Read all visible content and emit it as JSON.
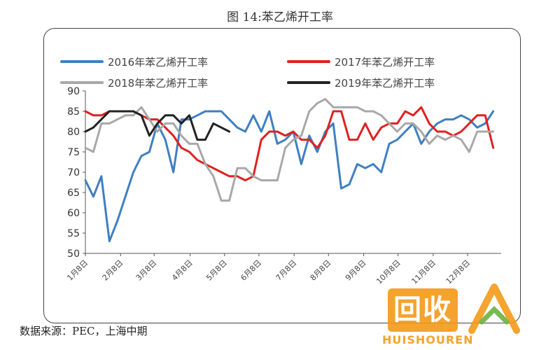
{
  "title": "图 14:苯乙烯开工率",
  "source": "数据来源：PEC，上海中期",
  "watermark": {
    "brand": "回收",
    "sub": "HUISHOUREN",
    "colors": {
      "orange": "#f39a18"
    }
  },
  "chart_data": {
    "type": "line",
    "title": "图 14:苯乙烯开工率",
    "xlabel": "",
    "ylabel": "",
    "ylim": [
      50,
      90
    ],
    "yticks": [
      50,
      55,
      60,
      65,
      70,
      75,
      80,
      85,
      90
    ],
    "grid": false,
    "legend_position": "top",
    "x_range": [
      0,
      52
    ],
    "xticks": [
      {
        "label": "1月8日",
        "x": 0
      },
      {
        "label": "2月8日",
        "x": 4.4
      },
      {
        "label": "3月8日",
        "x": 8.6
      },
      {
        "label": "4月8日",
        "x": 13.1
      },
      {
        "label": "5月8日",
        "x": 17.4
      },
      {
        "label": "6月8日",
        "x": 21.7
      },
      {
        "label": "7月8日",
        "x": 26.1
      },
      {
        "label": "8月8日",
        "x": 30.4
      },
      {
        "label": "9月8日",
        "x": 34.8
      },
      {
        "label": "10月8日",
        "x": 39.1
      },
      {
        "label": "11月8日",
        "x": 43.5
      },
      {
        "label": "12月8日",
        "x": 47.8
      }
    ],
    "series": [
      {
        "name": "2016年苯乙烯开工率",
        "color": "#3f7fc1",
        "values": [
          68,
          64,
          69,
          53,
          58,
          64,
          70,
          74,
          75,
          82,
          78,
          70,
          83,
          83,
          84,
          85,
          85,
          85,
          83,
          81,
          80,
          84,
          80,
          85,
          77,
          78,
          80,
          72,
          79,
          75,
          80,
          82,
          66,
          67,
          72,
          71,
          72,
          70,
          77,
          78,
          80,
          82,
          77,
          80,
          82,
          83,
          83,
          84,
          83,
          81,
          82,
          85
        ]
      },
      {
        "name": "2017年苯乙烯开工率",
        "color": "#e02020",
        "values": [
          85,
          84,
          84,
          85,
          85,
          85,
          85,
          84,
          83,
          83,
          81,
          79,
          76,
          75,
          73,
          72,
          71,
          70,
          69,
          69,
          68,
          69,
          78,
          80,
          80,
          79,
          80,
          78,
          78,
          76,
          79,
          85,
          85,
          78,
          78,
          82,
          78,
          81,
          82,
          82,
          85,
          84,
          86,
          82,
          80,
          80,
          79,
          80,
          82,
          84,
          84,
          76
        ]
      },
      {
        "name": "2018年苯乙烯开工率",
        "color": "#a8a8a8",
        "values": [
          76,
          75,
          82,
          82,
          83,
          84,
          84,
          86,
          83,
          80,
          82,
          82,
          79,
          77,
          77,
          72,
          69,
          63,
          63,
          71,
          71,
          69,
          68,
          68,
          68,
          76,
          78,
          79,
          85,
          87,
          88,
          86,
          86,
          86,
          86,
          85,
          85,
          84,
          82,
          80,
          82,
          82,
          80,
          77,
          79,
          78,
          79,
          78,
          75,
          80,
          80,
          80
        ]
      },
      {
        "name": "2019年苯乙烯开工率",
        "color": "#222222",
        "values": [
          80,
          81,
          83,
          85,
          85,
          85,
          85,
          84,
          79,
          82,
          84,
          84,
          82,
          84,
          78,
          78,
          82,
          81,
          80
        ]
      }
    ]
  }
}
